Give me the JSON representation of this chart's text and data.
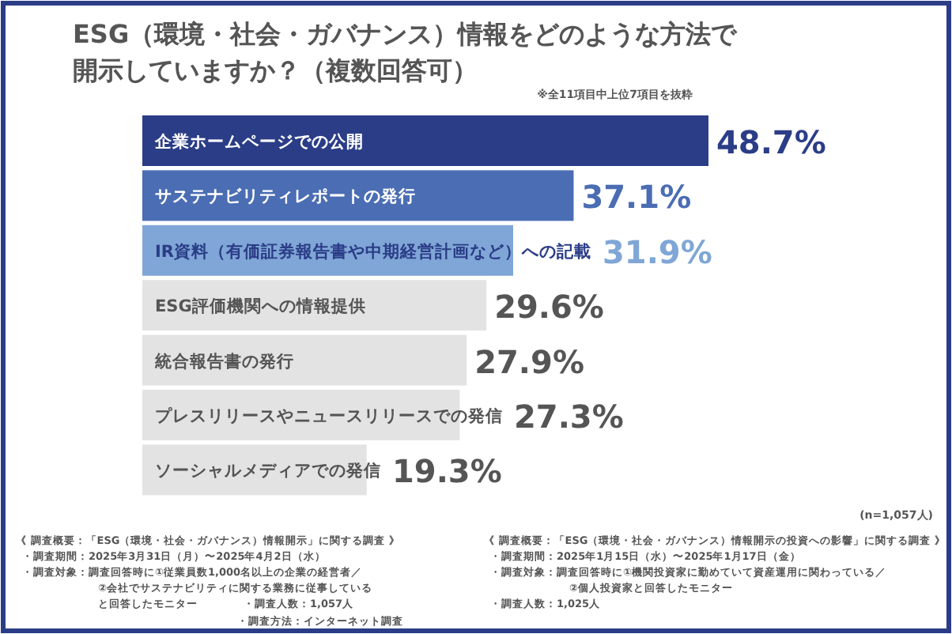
{
  "chart_data": {
    "type": "bar",
    "orientation": "horizontal",
    "title": "ESG（環境・社会・ガバナンス）情報をどのような方法で開示していますか？（複数回答可）",
    "subtitle": "※全11項目中上位7項目を抜粋",
    "categories": [
      "企業ホームページでの公開",
      "サステナビリティレポートの発行",
      "IR資料（有価証券報告書や中期経営計画など）への記載",
      "ESG評価機関への情報提供",
      "統合報告書の発行",
      "プレスリリースやニュースリリースでの発信",
      "ソーシャルメディアでの発信"
    ],
    "values": [
      48.7,
      37.1,
      31.9,
      29.6,
      27.9,
      27.3,
      19.3
    ],
    "colors": [
      "#2b3d87",
      "#4a6db3",
      "#7fa6d6",
      "#e3e3e3",
      "#e3e3e3",
      "#e3e3e3",
      "#e3e3e3"
    ],
    "value_labels": [
      "48.7%",
      "37.1%",
      "31.9%",
      "29.6%",
      "27.9%",
      "27.3%",
      "19.3%"
    ],
    "annotations": [
      "(n=1,057人)",
      "《 調査概要：「ESG（環境・社会・ガバナンス）情報開示」に関する調査 》",
      "・調査期間：2025年3月31日（月）〜2025年4月2日（水）",
      "・調査対象：調査回答時に①従業員数1,000名以上の企業の経営者／",
      "②会社でサステナビリティに関する業務に従事している",
      "と回答したモニター",
      "・調査人数：1,057人",
      "《 調査概要：「ESG（環境・社会・ガバナンス）情報開示の投資への影響」に関する調査 》",
      "・調査期間：2025年1月15日（水）〜2025年1月17日（金）",
      "・調査対象：調査回答時に①機関投資家に勤めていて資産運用に関わっている／",
      "②個人投資家と回答したモニター",
      "・調査人数：1,025人",
      "・調査方法：インターネット調査"
    ]
  }
}
